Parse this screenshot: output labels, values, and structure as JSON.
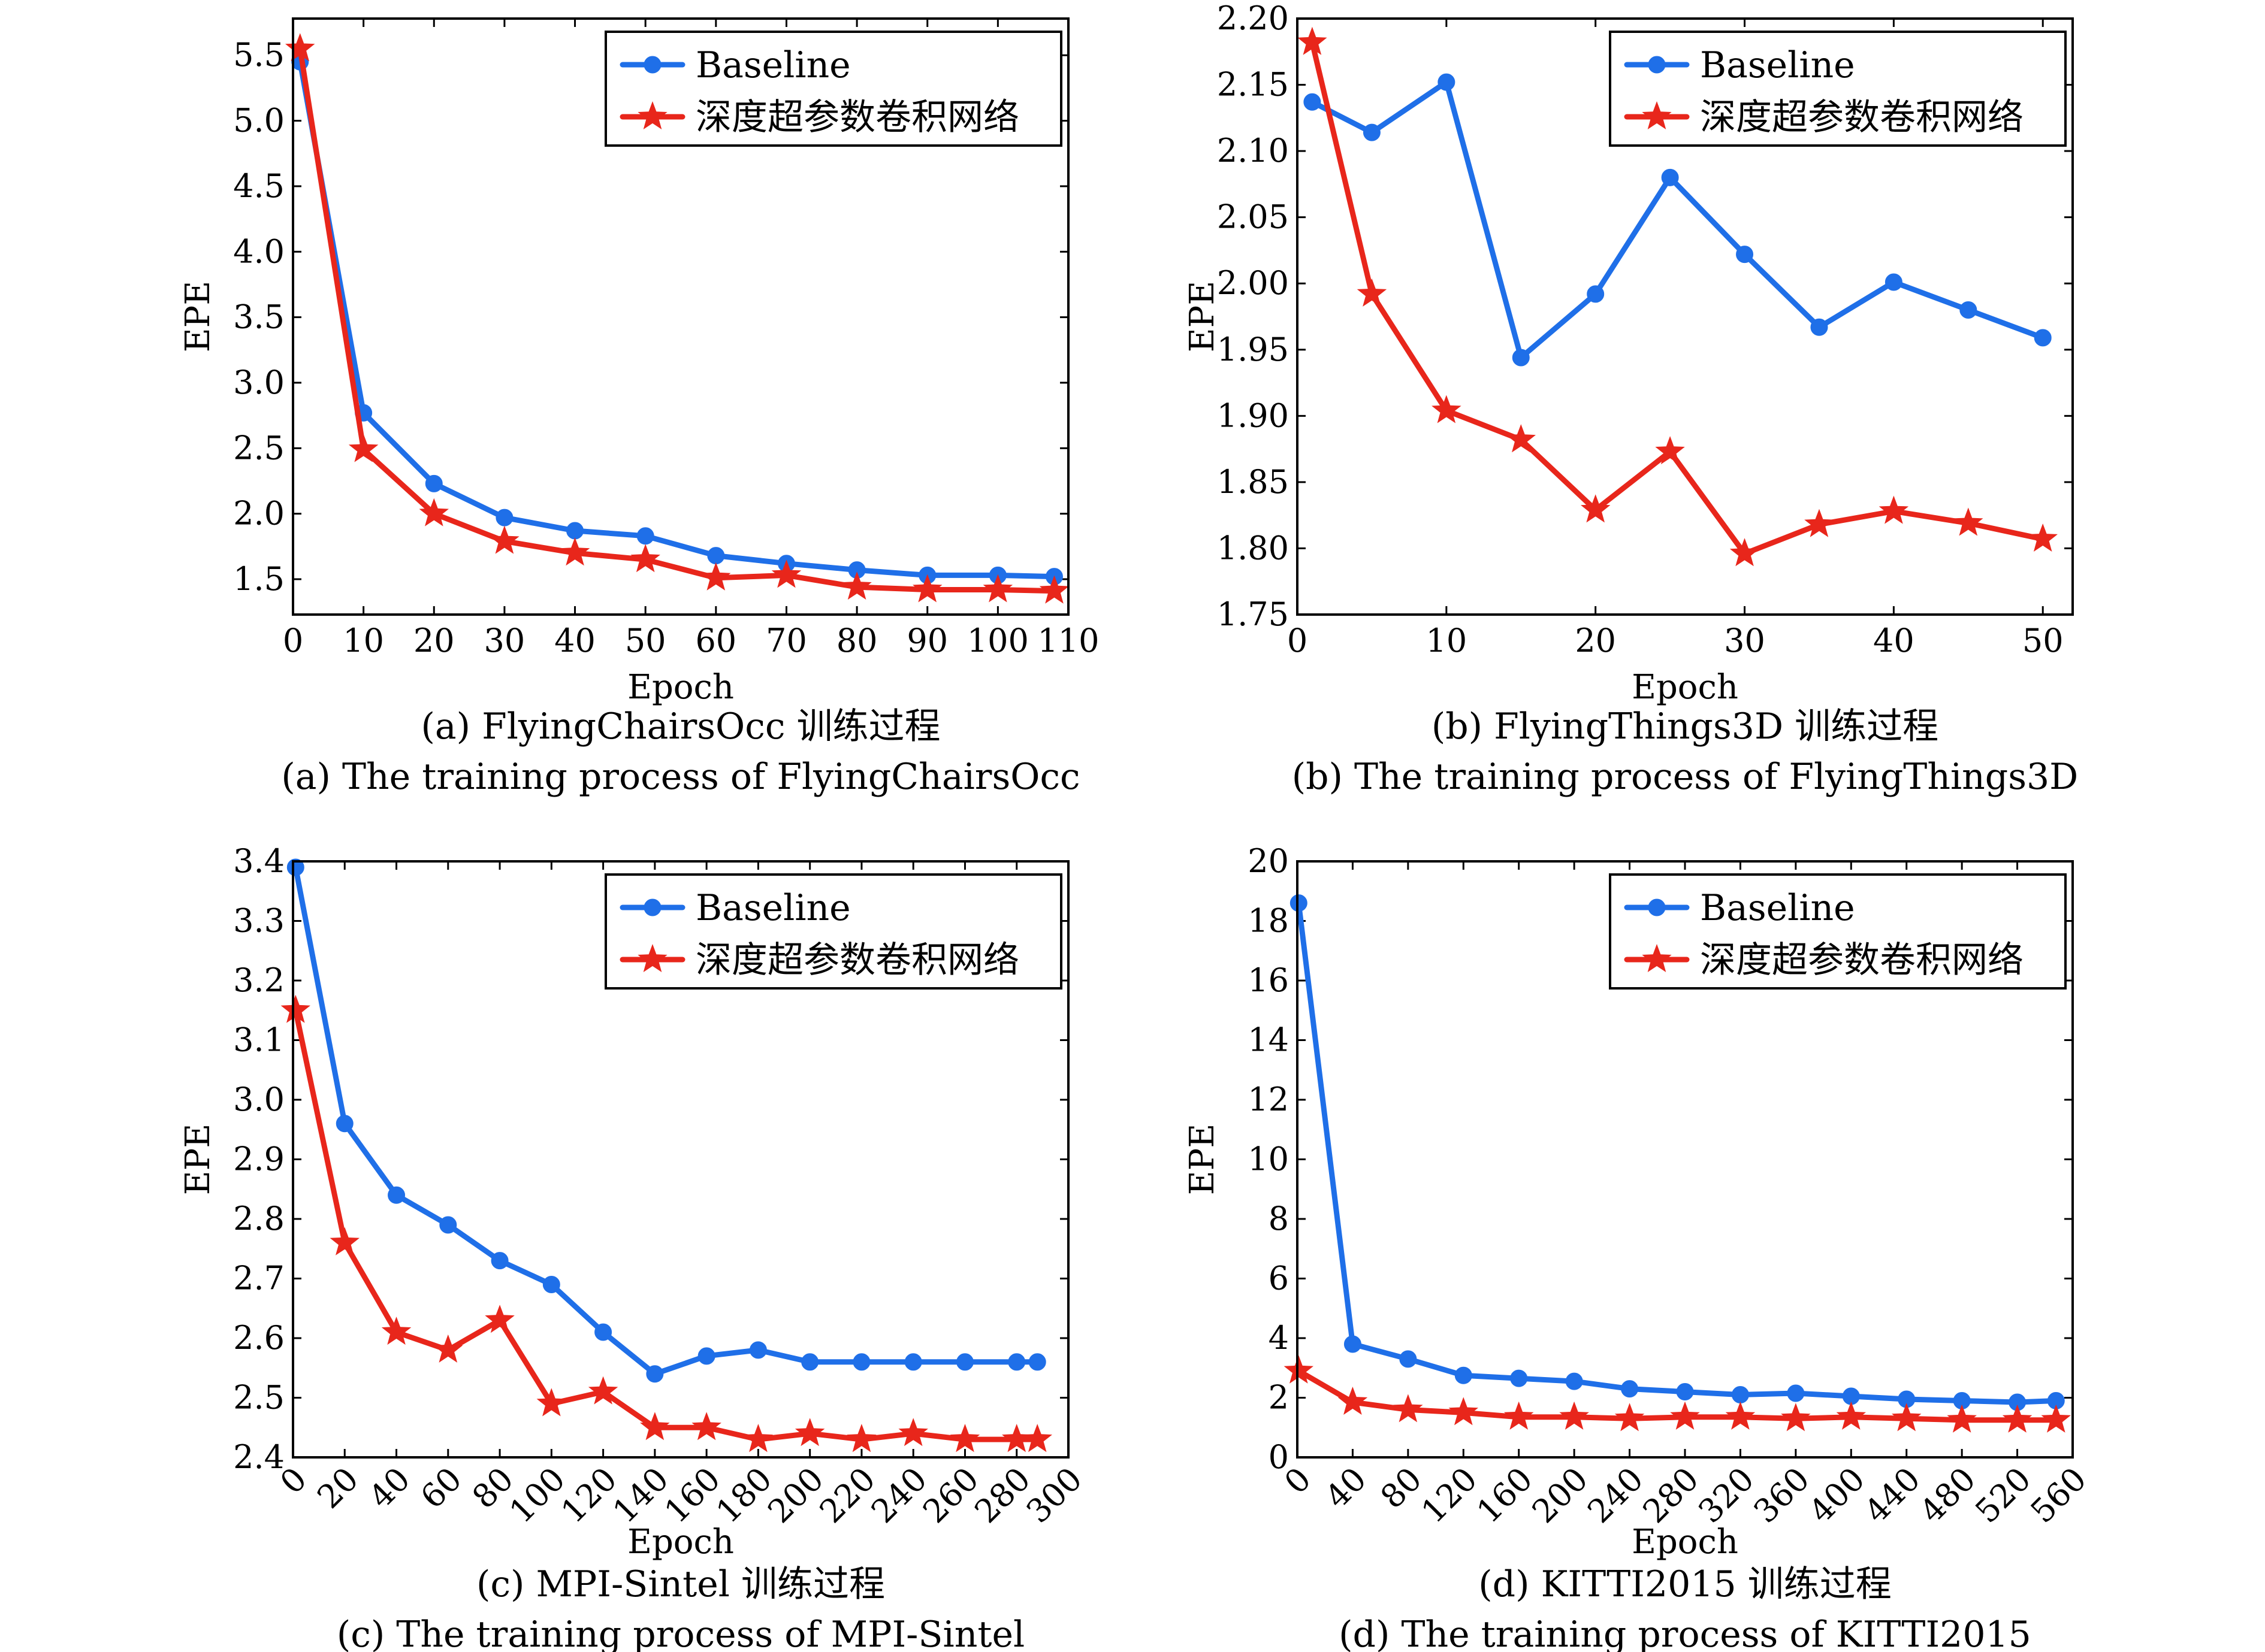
{
  "colors": {
    "baseline": "#1f6fe8",
    "ours": "#e8261b"
  },
  "chart_data": [
    {
      "type": "line",
      "caption_cn": "(a) FlyingChairsOcc 训练过程",
      "caption_en": "(a) The training process of FlyingChairsOcc",
      "xlabel": "Epoch",
      "ylabel": "EPE",
      "xlim": [
        0,
        110
      ],
      "ylim": [
        1.23,
        5.78
      ],
      "xticks": [
        0,
        10,
        20,
        30,
        40,
        50,
        60,
        70,
        80,
        90,
        100,
        110
      ],
      "yticks": [
        1.5,
        2.0,
        2.5,
        3.0,
        3.5,
        4.0,
        4.5,
        5.0,
        5.5
      ],
      "yticks_labels": [
        "1.5",
        "2.0",
        "2.5",
        "3.0",
        "3.5",
        "4.0",
        "4.5",
        "5.0",
        "5.5"
      ],
      "xticks_rotated": false,
      "legend_position": "top-right",
      "series": [
        {
          "name": "Baseline",
          "marker": "circle",
          "x": [
            1,
            10,
            20,
            30,
            40,
            50,
            60,
            70,
            80,
            90,
            100,
            108
          ],
          "y": [
            5.45,
            2.77,
            2.23,
            1.97,
            1.87,
            1.83,
            1.68,
            1.62,
            1.57,
            1.53,
            1.53,
            1.52
          ]
        },
        {
          "name": "深度超参数卷积网络",
          "marker": "star",
          "x": [
            1,
            10,
            20,
            30,
            40,
            50,
            60,
            70,
            80,
            90,
            100,
            108
          ],
          "y": [
            5.55,
            2.49,
            2.0,
            1.79,
            1.7,
            1.65,
            1.51,
            1.53,
            1.44,
            1.42,
            1.42,
            1.41
          ]
        }
      ]
    },
    {
      "type": "line",
      "caption_cn": "(b) FlyingThings3D 训练过程",
      "caption_en": "(b) The training process of FlyingThings3D",
      "xlabel": "Epoch",
      "ylabel": "EPE",
      "xlim": [
        0,
        52
      ],
      "ylim": [
        1.75,
        2.2
      ],
      "xticks": [
        0,
        10,
        20,
        30,
        40,
        50
      ],
      "yticks": [
        1.75,
        1.8,
        1.85,
        1.9,
        1.95,
        2.0,
        2.05,
        2.1,
        2.15,
        2.2
      ],
      "yticks_labels": [
        "1.75",
        "1.80",
        "1.85",
        "1.90",
        "1.95",
        "2.00",
        "2.05",
        "2.10",
        "2.15",
        "2.20"
      ],
      "xticks_rotated": false,
      "legend_position": "top-right",
      "series": [
        {
          "name": "Baseline",
          "marker": "circle",
          "x": [
            1,
            5,
            10,
            15,
            20,
            25,
            30,
            35,
            40,
            45,
            50
          ],
          "y": [
            2.137,
            2.114,
            2.152,
            1.944,
            1.992,
            2.08,
            2.022,
            1.967,
            2.001,
            1.98,
            1.959
          ]
        },
        {
          "name": "深度超参数卷积网络",
          "marker": "star",
          "x": [
            1,
            5,
            10,
            15,
            20,
            25,
            30,
            35,
            40,
            45,
            50
          ],
          "y": [
            2.182,
            1.992,
            1.904,
            1.882,
            1.829,
            1.873,
            1.796,
            1.818,
            1.828,
            1.819,
            1.807
          ]
        }
      ]
    },
    {
      "type": "line",
      "caption_cn": "(c) MPI-Sintel 训练过程",
      "caption_en": "(c) The training process of MPI-Sintel",
      "xlabel": "Epoch",
      "ylabel": "EPE",
      "xlim": [
        0,
        300
      ],
      "ylim": [
        2.4,
        3.4
      ],
      "xticks": [
        0,
        20,
        40,
        60,
        80,
        100,
        120,
        140,
        160,
        180,
        200,
        220,
        240,
        260,
        280,
        300
      ],
      "yticks": [
        2.4,
        2.5,
        2.6,
        2.7,
        2.8,
        2.9,
        3.0,
        3.1,
        3.2,
        3.3,
        3.4
      ],
      "yticks_labels": [
        "2.4",
        "2.5",
        "2.6",
        "2.7",
        "2.8",
        "2.9",
        "3.0",
        "3.1",
        "3.2",
        "3.3",
        "3.4"
      ],
      "xticks_rotated": true,
      "legend_position": "top-right",
      "series": [
        {
          "name": "Baseline",
          "marker": "circle",
          "x": [
            1,
            20,
            40,
            60,
            80,
            100,
            120,
            140,
            160,
            180,
            200,
            220,
            240,
            260,
            280,
            288
          ],
          "y": [
            3.39,
            2.96,
            2.84,
            2.79,
            2.73,
            2.69,
            2.61,
            2.54,
            2.57,
            2.58,
            2.56,
            2.56,
            2.56,
            2.56,
            2.56,
            2.56
          ]
        },
        {
          "name": "深度超参数卷积网络",
          "marker": "star",
          "x": [
            1,
            20,
            40,
            60,
            80,
            100,
            120,
            140,
            160,
            180,
            200,
            220,
            240,
            260,
            280,
            288
          ],
          "y": [
            3.15,
            2.76,
            2.61,
            2.58,
            2.63,
            2.49,
            2.51,
            2.45,
            2.45,
            2.43,
            2.44,
            2.43,
            2.44,
            2.43,
            2.43,
            2.43
          ]
        }
      ]
    },
    {
      "type": "line",
      "caption_cn": "(d) KITTI2015 训练过程",
      "caption_en": "(d) The training process of KITTI2015",
      "xlabel": "Epoch",
      "ylabel": "EPE",
      "xlim": [
        0,
        560
      ],
      "ylim": [
        0,
        20
      ],
      "xticks": [
        0,
        40,
        80,
        120,
        160,
        200,
        240,
        280,
        320,
        360,
        400,
        440,
        480,
        520,
        560
      ],
      "yticks": [
        0,
        2,
        4,
        6,
        8,
        10,
        12,
        14,
        16,
        18,
        20
      ],
      "yticks_labels": [
        "0",
        "2",
        "4",
        "6",
        "8",
        "10",
        "12",
        "14",
        "16",
        "18",
        "20"
      ],
      "xticks_rotated": true,
      "legend_position": "top-right",
      "series": [
        {
          "name": "Baseline",
          "marker": "circle",
          "x": [
            1,
            40,
            80,
            120,
            160,
            200,
            240,
            280,
            320,
            360,
            400,
            440,
            480,
            520,
            548
          ],
          "y": [
            18.6,
            3.8,
            3.3,
            2.75,
            2.65,
            2.55,
            2.3,
            2.2,
            2.1,
            2.15,
            2.05,
            1.95,
            1.9,
            1.85,
            1.9
          ]
        },
        {
          "name": "深度超参数卷积网络",
          "marker": "star",
          "x": [
            1,
            40,
            80,
            120,
            160,
            200,
            240,
            280,
            320,
            360,
            400,
            440,
            480,
            520,
            548
          ],
          "y": [
            2.9,
            1.85,
            1.6,
            1.5,
            1.35,
            1.35,
            1.3,
            1.35,
            1.35,
            1.3,
            1.35,
            1.3,
            1.25,
            1.25,
            1.25
          ]
        }
      ]
    }
  ]
}
